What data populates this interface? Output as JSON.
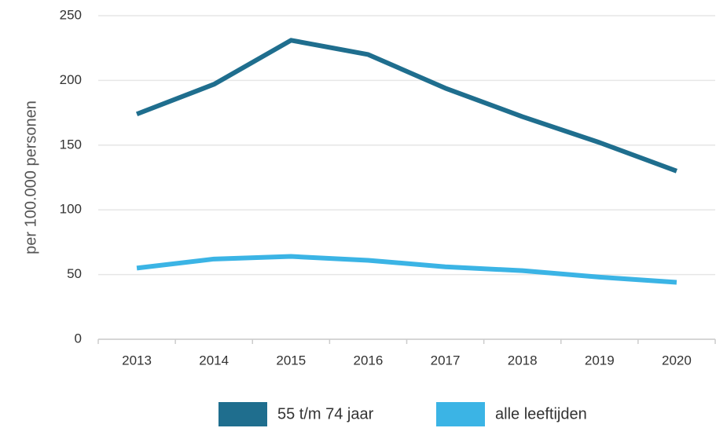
{
  "chart_data": {
    "type": "line",
    "y_label": "per 100.000 personen",
    "categories": [
      "2013",
      "2014",
      "2015",
      "2016",
      "2017",
      "2018",
      "2019",
      "2020"
    ],
    "series": [
      {
        "name": "55 t/m 74 jaar",
        "color": "#1f6e8e",
        "values": [
          174,
          197,
          231,
          220,
          194,
          172,
          152,
          130
        ]
      },
      {
        "name": "alle leeftijden",
        "color": "#3bb4e5",
        "values": [
          55,
          62,
          64,
          61,
          56,
          53,
          48,
          44
        ]
      }
    ],
    "ylim": [
      0,
      250
    ],
    "yticks": [
      0,
      50,
      100,
      150,
      200,
      250
    ],
    "grid": true,
    "legend": "bottom"
  }
}
